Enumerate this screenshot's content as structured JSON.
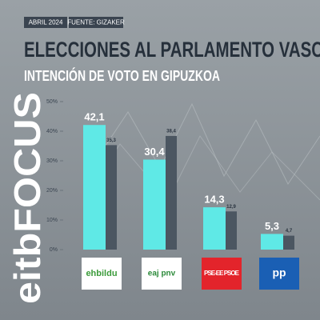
{
  "date": "ABRIL 2024",
  "source": "FUENTE: GIZAKER",
  "brand": "eitbFOCUS",
  "chart_data": {
    "type": "bar",
    "title": "ELECCIONES AL PARLAMENTO VASCO",
    "subtitle": "INTENCIÓN DE VOTO EN GIPUZKOA",
    "categories": [
      "ehbildu",
      "eaj pnv",
      "PSE-EE PSOE",
      "pp"
    ],
    "series": [
      {
        "color": "#5fe9e6",
        "values": [
          42.1,
          30.4,
          14.3,
          5.3
        ],
        "value_labels": [
          "42,1",
          "30,4",
          "14,3",
          "5,3"
        ]
      },
      {
        "color": "#4b5661",
        "values": [
          35.3,
          38.4,
          12.9,
          4.7
        ],
        "value_labels": [
          "35,3",
          "38,4",
          "12,9",
          "4,7"
        ]
      }
    ],
    "ylim": [
      0,
      50
    ],
    "yticks": [
      {
        "value": 0,
        "label": "0%"
      },
      {
        "value": 10,
        "label": "10%"
      },
      {
        "value": 20,
        "label": "20%"
      },
      {
        "value": 30,
        "label": "30%"
      },
      {
        "value": 40,
        "label": "40%"
      },
      {
        "value": 50,
        "label": "50%"
      }
    ],
    "grid": false
  }
}
